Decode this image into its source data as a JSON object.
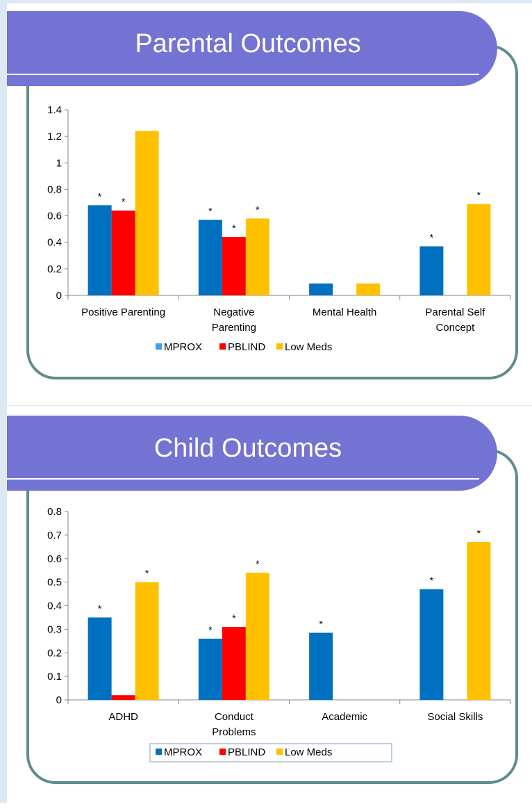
{
  "colors": {
    "title_bg": "#7373d4",
    "frame": "#5f8b8b",
    "mprox": "#0070c0",
    "mprox_legend_parental": "#3fa0ea",
    "pblind": "#ff0000",
    "lowmeds": "#ffc000"
  },
  "chart_data": [
    {
      "type": "bar",
      "title": "Parental Outcomes",
      "categories": [
        [
          "Positive Parenting"
        ],
        [
          "Negative",
          "Parenting"
        ],
        [
          "Mental Health"
        ],
        [
          "Parental Self",
          "Concept"
        ]
      ],
      "series": [
        {
          "name": "MPROX",
          "values": [
            0.68,
            0.57,
            0.09,
            0.37
          ],
          "significant": [
            true,
            true,
            false,
            true
          ]
        },
        {
          "name": "PBLIND",
          "values": [
            0.64,
            0.44,
            0,
            0
          ],
          "significant": [
            true,
            true,
            false,
            false
          ]
        },
        {
          "name": "Low Meds",
          "values": [
            1.24,
            0.58,
            0.09,
            0.69
          ],
          "significant": [
            false,
            true,
            false,
            true
          ]
        }
      ],
      "ylim": [
        0,
        1.4
      ],
      "yticks": [
        "0",
        "0.2",
        "0.4",
        "0.6",
        "0.8",
        "1",
        "1.2",
        "1.4"
      ],
      "star_label": "*",
      "legend": [
        "MPROX",
        "PBLIND",
        "Low Meds"
      ],
      "legend_position": "bottom",
      "grid": false
    },
    {
      "type": "bar",
      "title": "Child Outcomes",
      "categories": [
        [
          "ADHD"
        ],
        [
          "Conduct",
          "Problems"
        ],
        [
          "Academic"
        ],
        [
          "Social Skills"
        ]
      ],
      "series": [
        {
          "name": "MPROX",
          "values": [
            0.35,
            0.26,
            0.285,
            0.47
          ],
          "significant": [
            true,
            true,
            true,
            true
          ]
        },
        {
          "name": "PBLIND",
          "values": [
            0.02,
            0.31,
            0,
            0
          ],
          "significant": [
            false,
            true,
            false,
            false
          ]
        },
        {
          "name": "Low Meds",
          "values": [
            0.5,
            0.54,
            0,
            0.67
          ],
          "significant": [
            true,
            true,
            false,
            true
          ]
        }
      ],
      "ylim": [
        0,
        0.8
      ],
      "yticks": [
        "0",
        "0.1",
        "0.2",
        "0.3",
        "0.4",
        "0.5",
        "0.6",
        "0.7",
        "0.8"
      ],
      "star_label": "*",
      "legend": [
        "MPROX",
        "PBLIND",
        "Low Meds"
      ],
      "legend_position": "bottom",
      "grid": false
    }
  ]
}
